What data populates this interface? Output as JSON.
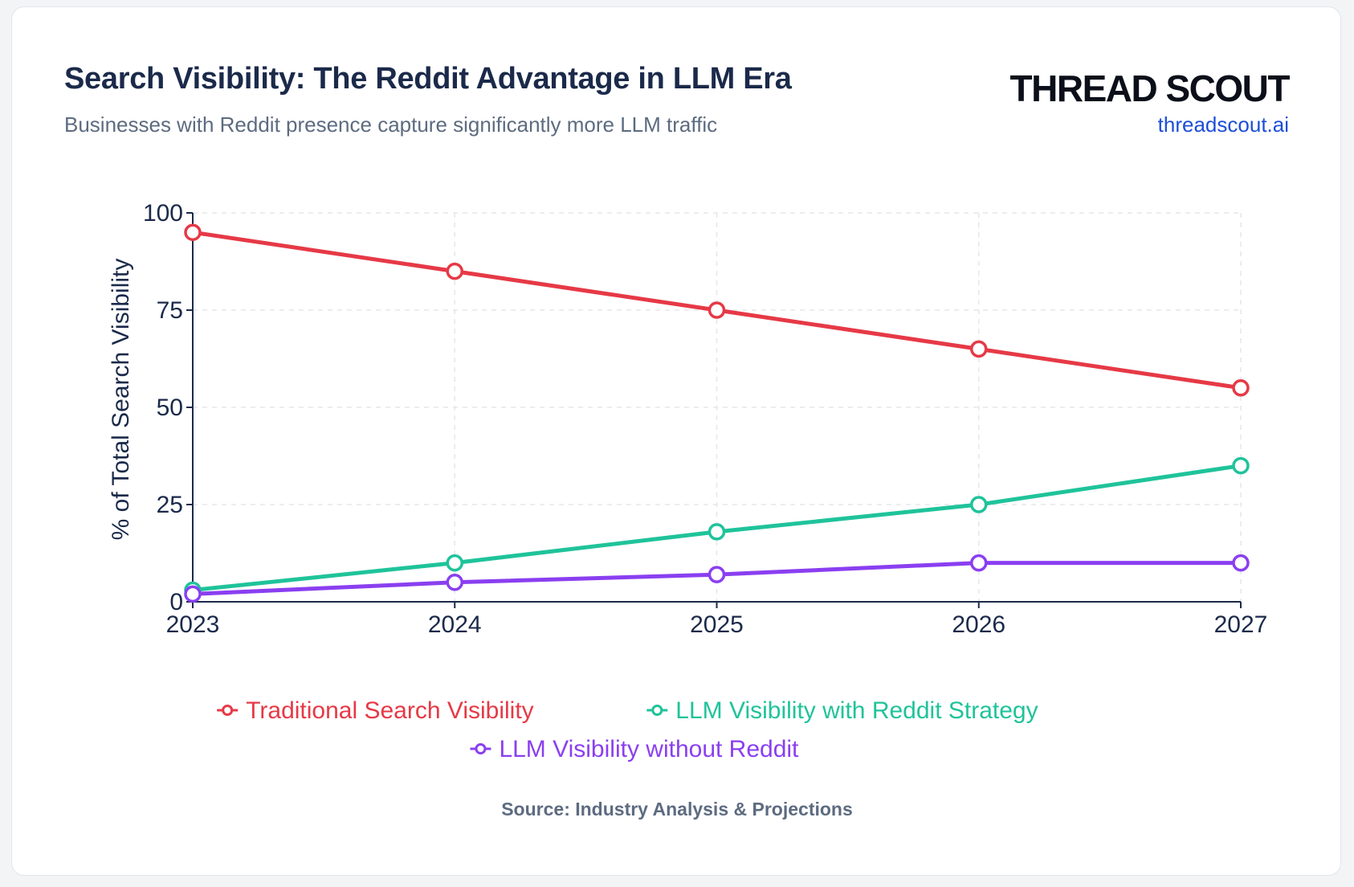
{
  "header": {
    "title": "Search Visibility: The Reddit Advantage in LLM Era",
    "subtitle": "Businesses with Reddit presence capture significantly more LLM traffic",
    "brand": "THREAD SCOUT",
    "brand_url": "threadscout.ai"
  },
  "footer": {
    "source": "Source: Industry Analysis & Projections"
  },
  "colors": {
    "traditional": "#e63946",
    "with_reddit": "#1fc39a",
    "without_reddit": "#8a3ff0",
    "axis": "#1b2a4a",
    "grid": "#e5e7eb"
  },
  "chart_data": {
    "type": "line",
    "x": [
      "2023",
      "2024",
      "2025",
      "2026",
      "2027"
    ],
    "ylabel": "% of Total Search Visibility",
    "xlabel": "",
    "ylim": [
      0,
      100
    ],
    "yticks": [
      0,
      25,
      50,
      75,
      100
    ],
    "grid": true,
    "legend_position": "bottom-center",
    "series": [
      {
        "name": "Traditional Search Visibility",
        "color_key": "traditional",
        "values": [
          95,
          85,
          75,
          65,
          55
        ]
      },
      {
        "name": "LLM Visibility with Reddit Strategy",
        "color_key": "with_reddit",
        "values": [
          3,
          10,
          18,
          25,
          35
        ]
      },
      {
        "name": "LLM Visibility without Reddit",
        "color_key": "without_reddit",
        "values": [
          2,
          5,
          7,
          10,
          10
        ]
      }
    ]
  }
}
